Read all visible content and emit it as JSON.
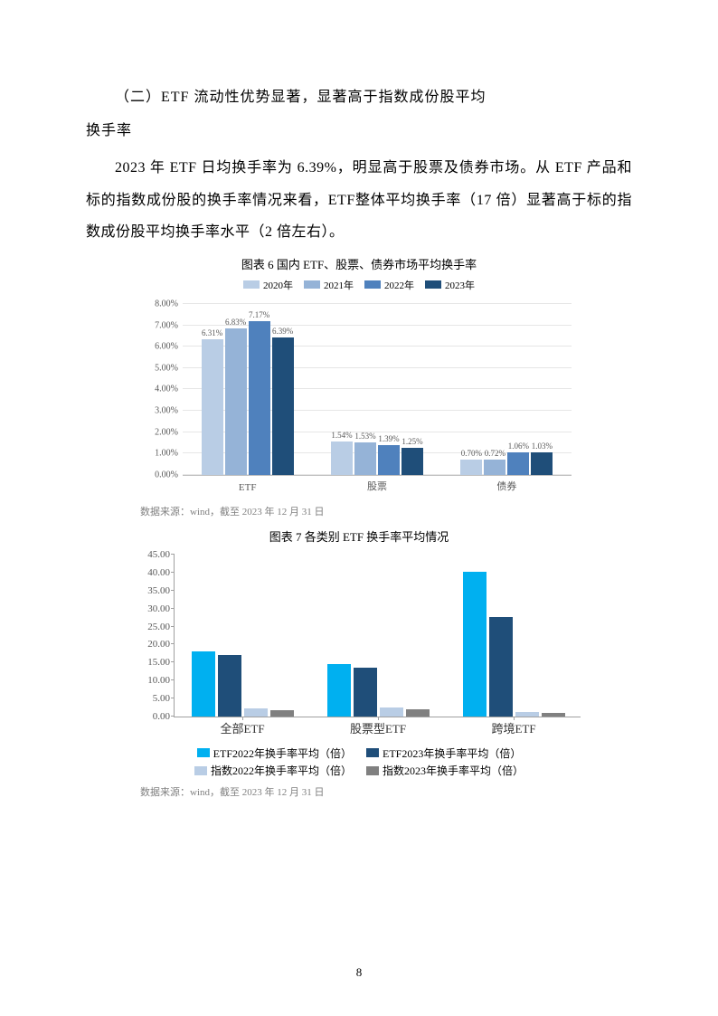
{
  "heading_line1": "（二）ETF 流动性优势显著，显著高于指数成份股平均",
  "heading_line2": "换手率",
  "paragraph": "2023 年 ETF 日均换手率为 6.39%，明显高于股票及债券市场。从 ETF 产品和标的指数成份股的换手率情况来看，ETF整体平均换手率（17 倍）显著高于标的指数成份股平均换手率水平（2 倍左右）。",
  "chart6": {
    "title": "图表 6  国内 ETF、股票、债券市场平均换手率",
    "legend": [
      "2020年",
      "2021年",
      "2022年",
      "2023年"
    ],
    "colors": [
      "#b9cde5",
      "#95b3d7",
      "#4f81bd",
      "#1f4e79"
    ],
    "ymax": 8.0,
    "ystep": 1.0,
    "ysuffix": "%",
    "categories": [
      "ETF",
      "股票",
      "债券"
    ],
    "series": [
      [
        6.31,
        6.83,
        7.17,
        6.39
      ],
      [
        1.54,
        1.53,
        1.39,
        1.25
      ],
      [
        0.7,
        0.72,
        1.06,
        1.03
      ]
    ],
    "labels": [
      [
        "6.31%",
        "6.83%",
        "7.17%",
        "6.39%"
      ],
      [
        "1.54%",
        "1.53%",
        "1.39%",
        "1.25%"
      ],
      [
        "0.70%",
        "0.72%",
        "1.06%",
        "1.03%"
      ]
    ],
    "source": "数据来源：wind，截至 2023 年 12 月 31 日"
  },
  "chart7": {
    "title": "图表 7   各类别 ETF 换手率平均情况",
    "ymax": 45,
    "ystep": 5,
    "categories": [
      "全部ETF",
      "股票型ETF",
      "跨境ETF"
    ],
    "colors": [
      "#00b0f0",
      "#1f4e79",
      "#b9cde5",
      "#808080"
    ],
    "series": [
      [
        18,
        17,
        2.2,
        1.8
      ],
      [
        14.5,
        13.5,
        2.5,
        2.0
      ],
      [
        40,
        27.5,
        1.2,
        1.0
      ]
    ],
    "legend": [
      "ETF2022年换手率平均（倍）",
      "ETF2023年换手率平均（倍）",
      "指数2022年换手率平均（倍）",
      "指数2023年换手率平均（倍）"
    ],
    "source": "数据来源：wind，截至 2023 年 12 月 31 日"
  },
  "page_number": "8"
}
